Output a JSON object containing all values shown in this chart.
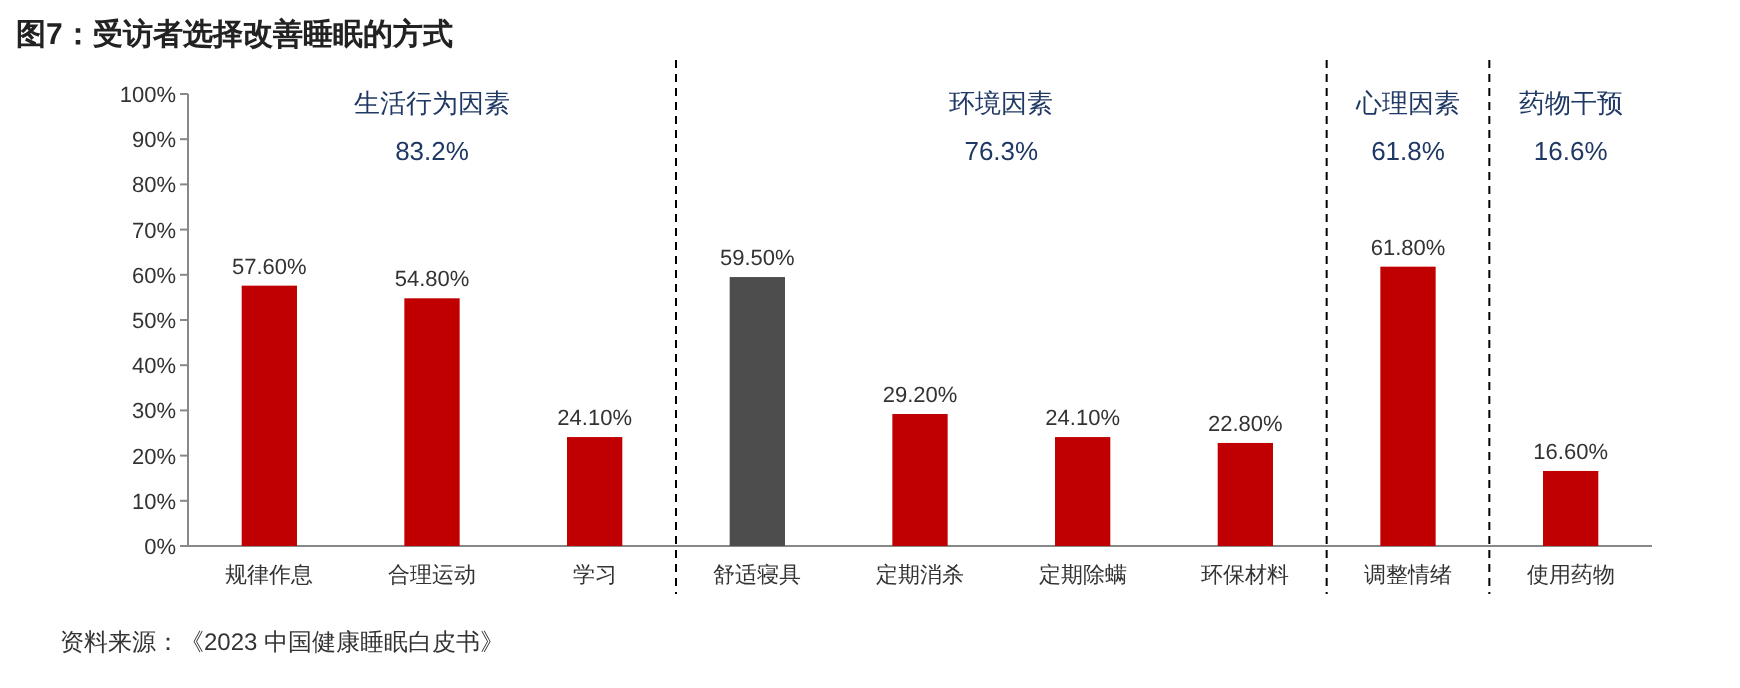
{
  "chart_data": {
    "type": "bar",
    "title": "图7：受访者选择改善睡眠的方式",
    "categories": [
      "规律作息",
      "合理运动",
      "学习",
      "舒适寝具",
      "定期消杀",
      "定期除螨",
      "环保材料",
      "调整情绪",
      "使用药物"
    ],
    "values": [
      57.6,
      54.8,
      24.1,
      59.5,
      29.2,
      24.1,
      22.8,
      61.8,
      16.6
    ],
    "colors": [
      "#c00000",
      "#c00000",
      "#c00000",
      "#4d4d4d",
      "#c00000",
      "#c00000",
      "#c00000",
      "#c00000",
      "#c00000"
    ],
    "value_labels": [
      "57.60%",
      "54.80%",
      "24.10%",
      "59.50%",
      "29.20%",
      "24.10%",
      "22.80%",
      "61.80%",
      "16.60%"
    ],
    "ylim": [
      0,
      100
    ],
    "yticks": [
      {
        "value": 0,
        "label": "0%"
      },
      {
        "value": 10,
        "label": "10%"
      },
      {
        "value": 20,
        "label": "20%"
      },
      {
        "value": 30,
        "label": "30%"
      },
      {
        "value": 40,
        "label": "40%"
      },
      {
        "value": 50,
        "label": "50%"
      },
      {
        "value": 60,
        "label": "60%"
      },
      {
        "value": 70,
        "label": "70%"
      },
      {
        "value": 80,
        "label": "80%"
      },
      {
        "value": 90,
        "label": "90%"
      },
      {
        "value": 100,
        "label": "100%"
      }
    ],
    "annotations": [
      "生活行为因素\n83.2%",
      "环境因素\n76.3%",
      "心理因素\n61.8%",
      "药物干预\n16.6%",
      "资料来源：《2023 中国健康睡眠白皮书》"
    ],
    "grid": false
  }
}
